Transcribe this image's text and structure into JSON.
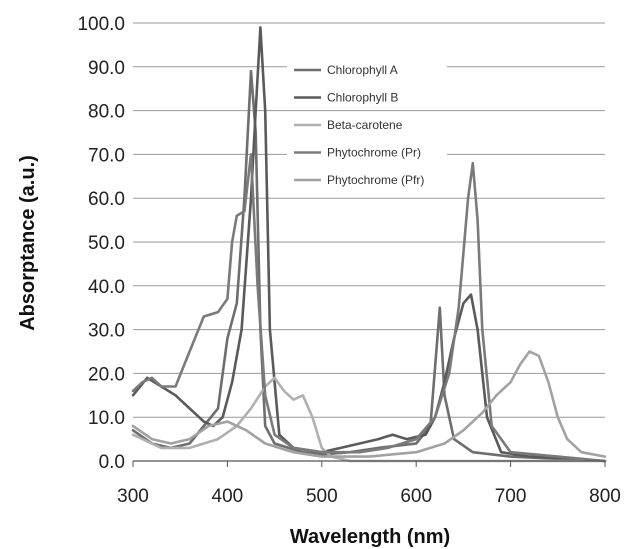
{
  "chart_data": {
    "type": "line",
    "title": "",
    "xlabel": "Wavelength (nm)",
    "ylabel": "Absorptance (a.u.)",
    "xlim": [
      300,
      800
    ],
    "ylim": [
      0,
      100
    ],
    "x_ticks": [
      "300",
      "400",
      "500",
      "600",
      "700",
      "800"
    ],
    "y_ticks": [
      "0.0",
      "10.0",
      "20.0",
      "30.0",
      "40.0",
      "50.0",
      "60.0",
      "70.0",
      "80.0",
      "90.0",
      "100.0"
    ],
    "grid": "horizontal",
    "legend_position": "top-center",
    "series": [
      {
        "name": "Chlorophyll A",
        "color": "#6e6e6e",
        "points": [
          [
            300,
            7
          ],
          [
            320,
            4
          ],
          [
            340,
            3
          ],
          [
            360,
            4
          ],
          [
            375,
            8
          ],
          [
            390,
            12
          ],
          [
            400,
            28
          ],
          [
            410,
            36
          ],
          [
            418,
            60
          ],
          [
            425,
            89
          ],
          [
            430,
            75
          ],
          [
            435,
            30
          ],
          [
            440,
            8
          ],
          [
            450,
            4
          ],
          [
            480,
            2
          ],
          [
            500,
            1.5
          ],
          [
            530,
            2
          ],
          [
            560,
            3
          ],
          [
            580,
            3.5
          ],
          [
            600,
            4
          ],
          [
            615,
            8
          ],
          [
            625,
            35
          ],
          [
            630,
            15
          ],
          [
            640,
            5
          ],
          [
            660,
            2
          ],
          [
            700,
            1
          ],
          [
            750,
            0.5
          ],
          [
            800,
            0
          ]
        ]
      },
      {
        "name": "Chlorophyll B",
        "color": "#5a5a5a",
        "points": [
          [
            300,
            15
          ],
          [
            315,
            19
          ],
          [
            330,
            17
          ],
          [
            345,
            15
          ],
          [
            360,
            12
          ],
          [
            375,
            9
          ],
          [
            385,
            8
          ],
          [
            395,
            10
          ],
          [
            405,
            18
          ],
          [
            415,
            30
          ],
          [
            425,
            60
          ],
          [
            430,
            80
          ],
          [
            435,
            99
          ],
          [
            440,
            80
          ],
          [
            445,
            30
          ],
          [
            455,
            6
          ],
          [
            470,
            3
          ],
          [
            500,
            2
          ],
          [
            520,
            3
          ],
          [
            540,
            4
          ],
          [
            560,
            5
          ],
          [
            575,
            6
          ],
          [
            590,
            5
          ],
          [
            610,
            6
          ],
          [
            620,
            10
          ],
          [
            630,
            18
          ],
          [
            640,
            28
          ],
          [
            650,
            36
          ],
          [
            658,
            38
          ],
          [
            665,
            30
          ],
          [
            675,
            10
          ],
          [
            690,
            2
          ],
          [
            720,
            1
          ],
          [
            800,
            0
          ]
        ]
      },
      {
        "name": "Beta-carotene",
        "color": "#b0b0b0",
        "points": [
          [
            300,
            6
          ],
          [
            330,
            3
          ],
          [
            360,
            3
          ],
          [
            390,
            5
          ],
          [
            410,
            8
          ],
          [
            425,
            12
          ],
          [
            440,
            17
          ],
          [
            450,
            19
          ],
          [
            460,
            16
          ],
          [
            470,
            14
          ],
          [
            480,
            15
          ],
          [
            490,
            10
          ],
          [
            500,
            3
          ],
          [
            510,
            1
          ],
          [
            530,
            0
          ],
          [
            800,
            0
          ]
        ]
      },
      {
        "name": "Phytochrome (Pr)",
        "color": "#7a7a7a",
        "points": [
          [
            300,
            16
          ],
          [
            310,
            18
          ],
          [
            320,
            19
          ],
          [
            330,
            17
          ],
          [
            345,
            17
          ],
          [
            360,
            25
          ],
          [
            375,
            33
          ],
          [
            390,
            34
          ],
          [
            400,
            37
          ],
          [
            405,
            50
          ],
          [
            410,
            56
          ],
          [
            418,
            57
          ],
          [
            425,
            70
          ],
          [
            432,
            40
          ],
          [
            440,
            15
          ],
          [
            450,
            6
          ],
          [
            470,
            3
          ],
          [
            500,
            2
          ],
          [
            540,
            2
          ],
          [
            570,
            3
          ],
          [
            600,
            5
          ],
          [
            620,
            10
          ],
          [
            635,
            20
          ],
          [
            645,
            35
          ],
          [
            655,
            60
          ],
          [
            660,
            68
          ],
          [
            665,
            55
          ],
          [
            670,
            30
          ],
          [
            680,
            8
          ],
          [
            700,
            2
          ],
          [
            750,
            1
          ],
          [
            800,
            0
          ]
        ]
      },
      {
        "name": "Phytochrome (Pfr)",
        "color": "#a2a2a2",
        "points": [
          [
            300,
            8
          ],
          [
            320,
            5
          ],
          [
            340,
            4
          ],
          [
            360,
            5
          ],
          [
            380,
            8
          ],
          [
            400,
            9
          ],
          [
            420,
            7
          ],
          [
            440,
            4
          ],
          [
            470,
            2
          ],
          [
            500,
            1
          ],
          [
            550,
            1
          ],
          [
            600,
            2
          ],
          [
            630,
            4
          ],
          [
            650,
            7
          ],
          [
            670,
            11
          ],
          [
            685,
            15
          ],
          [
            700,
            18
          ],
          [
            710,
            22
          ],
          [
            720,
            25
          ],
          [
            730,
            24
          ],
          [
            740,
            18
          ],
          [
            750,
            10
          ],
          [
            760,
            5
          ],
          [
            775,
            2
          ],
          [
            800,
            1
          ]
        ]
      }
    ]
  }
}
